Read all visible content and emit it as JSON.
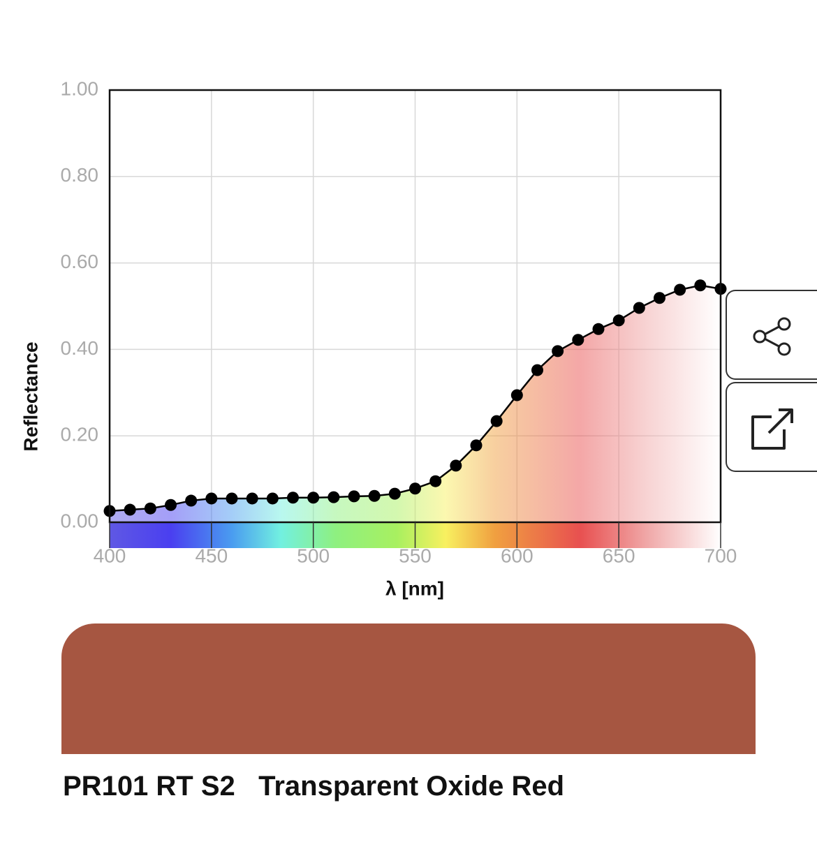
{
  "chart_data": {
    "type": "line",
    "xlabel": "λ [nm]",
    "ylabel": "Reflectance",
    "x": [
      400,
      410,
      420,
      430,
      440,
      450,
      460,
      470,
      480,
      490,
      500,
      510,
      520,
      530,
      540,
      550,
      560,
      570,
      580,
      590,
      600,
      610,
      620,
      630,
      640,
      650,
      660,
      670,
      680,
      690,
      700
    ],
    "values": [
      0.026,
      0.029,
      0.032,
      0.04,
      0.05,
      0.055,
      0.055,
      0.055,
      0.055,
      0.057,
      0.057,
      0.058,
      0.06,
      0.061,
      0.066,
      0.078,
      0.095,
      0.131,
      0.178,
      0.234,
      0.294,
      0.352,
      0.396,
      0.422,
      0.447,
      0.467,
      0.496,
      0.519,
      0.538,
      0.548,
      0.54
    ],
    "color": "#000000",
    "xlim": [
      400,
      700
    ],
    "xticks": [
      400,
      450,
      500,
      550,
      600,
      650,
      700
    ],
    "ylim": [
      0,
      1
    ],
    "yticks": [
      {
        "value": 0,
        "label": "0.00"
      },
      {
        "value": 0.2,
        "label": "0.20"
      },
      {
        "value": 0.4,
        "label": "0.40"
      },
      {
        "value": 0.6,
        "label": "0.60"
      },
      {
        "value": 0.8,
        "label": "0.80"
      },
      {
        "value": 1,
        "label": "1.00"
      }
    ],
    "grid": true
  },
  "pigment": {
    "code": "PR101 RT S2",
    "name": "Transparent Oxide Red",
    "swatch_color": "#a65641"
  }
}
